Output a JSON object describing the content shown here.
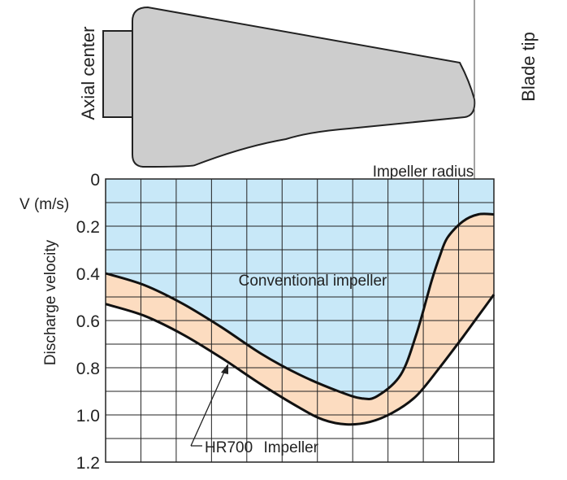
{
  "labels": {
    "axial_center": "Axial center",
    "blade_tip": "Blade tip",
    "impeller_radius": "Impeller radius",
    "unit": "V (m/s)",
    "ylabel": "Discharge velocity",
    "conventional": "Conventional impeller",
    "hr700_name": "HR700",
    "hr700_suffix": "Impeller"
  },
  "colors": {
    "conventional_fill": "#c8e8f8",
    "hr700_band_fill": "#fcdcc0",
    "impeller_fill": "#cdcdcd",
    "grid": "#222222"
  },
  "chart_data": {
    "type": "area",
    "xlabel": "Impeller radius",
    "ylabel": "Discharge velocity",
    "yunit": "V (m/s)",
    "ylim": [
      0,
      1.2
    ],
    "y_ticks": [
      "0",
      "0.2",
      "0.4",
      "0.6",
      "0.8",
      "1.0",
      "1.2"
    ],
    "y_tick_values": [
      0,
      0.2,
      0.4,
      0.6,
      0.8,
      1.0,
      1.2
    ],
    "y_inverted": true,
    "x_left": "Axial center",
    "x_right": "Blade tip",
    "xlim": [
      0,
      1
    ],
    "grid": true,
    "series": [
      {
        "name": "Conventional impeller",
        "x": [
          0.0,
          0.1,
          0.2,
          0.3,
          0.4,
          0.5,
          0.6,
          0.66,
          0.7,
          0.76,
          0.8,
          0.84,
          0.86,
          0.88,
          0.92,
          0.96,
          1.0
        ],
        "values": [
          0.4,
          0.45,
          0.53,
          0.63,
          0.74,
          0.83,
          0.9,
          0.93,
          0.92,
          0.83,
          0.66,
          0.43,
          0.33,
          0.25,
          0.18,
          0.15,
          0.15
        ]
      },
      {
        "name": "HR700 Impeller",
        "x": [
          0.0,
          0.1,
          0.2,
          0.3,
          0.4,
          0.5,
          0.56,
          0.62,
          0.68,
          0.74,
          0.8,
          0.86,
          0.92,
          0.96,
          1.0
        ],
        "values": [
          0.53,
          0.58,
          0.66,
          0.76,
          0.87,
          0.97,
          1.02,
          1.04,
          1.03,
          0.99,
          0.92,
          0.8,
          0.67,
          0.58,
          0.49
        ]
      }
    ]
  }
}
